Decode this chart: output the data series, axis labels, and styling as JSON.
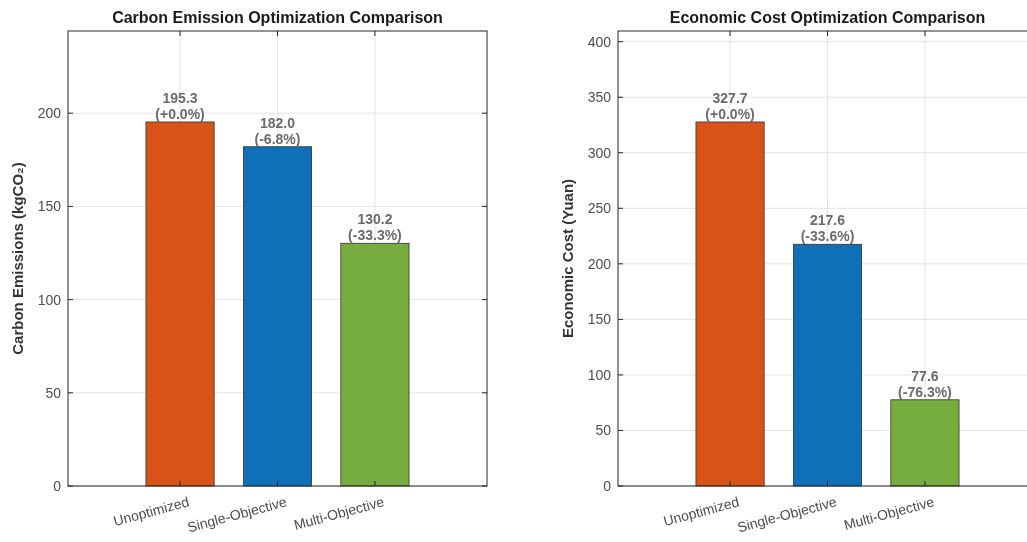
{
  "chart_data": [
    {
      "type": "bar",
      "title": "Carbon Emission Optimization Comparison",
      "ylabel": "Carbon Emissions (kgCO₂)",
      "categories": [
        "Unoptimized",
        "Single-Objective",
        "Multi-Objective"
      ],
      "values": [
        195.3,
        182.0,
        130.2
      ],
      "colors": [
        "#d95319",
        "#0f6fb8",
        "#77ac3f"
      ],
      "value_labels": [
        "195.3\n(+0.0%)",
        "182.0\n(-6.8%)",
        "130.2\n(-33.3%)"
      ],
      "ylim": [
        0,
        244.1
      ],
      "yticks": [
        0,
        50,
        100,
        150,
        200
      ],
      "grid": true
    },
    {
      "type": "bar",
      "title": "Economic Cost Optimization Comparison",
      "ylabel": "Economic Cost (Yuan)",
      "categories": [
        "Unoptimized",
        "Single-Objective",
        "Multi-Objective"
      ],
      "values": [
        327.7,
        217.6,
        77.6
      ],
      "colors": [
        "#d95319",
        "#0f6fb8",
        "#77ac3f"
      ],
      "value_labels": [
        "327.7\n(+0.0%)",
        "217.6\n(-33.6%)",
        "77.6\n(-76.3%)"
      ],
      "ylim": [
        0,
        409.6
      ],
      "yticks": [
        0,
        50,
        100,
        150,
        200,
        250,
        300,
        350,
        400
      ],
      "grid": true
    }
  ]
}
